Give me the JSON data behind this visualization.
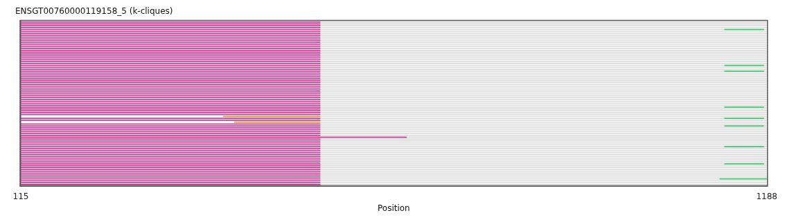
{
  "chart_data": {
    "type": "bar",
    "orientation": "horizontal",
    "title": "ENSGT00760000119158_5 (k-cliques)",
    "xlabel": "Position",
    "xlim": [
      115,
      1188
    ],
    "xticks": [
      115,
      1188
    ],
    "tick_labels": "x",
    "legend": false,
    "categories": [
      null,
      null,
      null,
      null,
      null,
      null,
      null,
      null,
      null,
      null,
      null,
      null,
      null,
      null,
      null,
      null,
      null,
      null,
      null,
      null,
      null,
      null,
      null,
      null,
      null,
      null,
      null,
      null,
      null,
      null,
      null,
      null,
      null,
      null,
      null,
      null,
      null,
      null,
      null,
      null,
      null,
      null,
      null,
      null,
      null,
      null,
      null,
      null,
      null,
      null,
      null,
      null,
      null,
      null,
      null,
      null,
      null,
      null,
      null,
      null,
      null,
      null,
      null,
      null,
      null,
      null,
      null,
      null,
      null,
      null,
      null,
      null,
      null,
      null,
      null,
      null,
      null,
      null,
      null,
      null,
      null,
      null,
      null,
      null,
      null,
      null,
      null
    ],
    "series": [
      {
        "color": "#dddddd",
        "base": [
          546,
          546,
          546,
          546,
          546,
          546,
          546,
          546,
          546,
          546,
          546,
          546,
          546,
          546,
          546,
          546,
          546,
          546,
          546,
          546,
          546,
          546,
          546,
          546,
          546,
          546,
          546,
          546,
          546,
          546,
          546,
          546,
          546,
          546,
          546,
          546,
          546,
          546,
          546,
          546,
          546,
          546,
          546,
          546,
          546,
          546,
          546,
          546,
          546,
          546,
          546,
          546,
          546,
          546,
          546,
          546,
          546,
          546,
          546,
          546,
          546,
          670,
          546,
          546,
          546,
          546,
          546,
          546,
          546,
          546,
          546,
          546,
          546,
          546,
          546,
          546,
          546,
          546,
          546,
          546,
          546,
          546,
          546,
          546,
          546,
          546,
          546
        ],
        "values": [
          642,
          642,
          642,
          642,
          642,
          642,
          642,
          642,
          642,
          642,
          642,
          642,
          642,
          642,
          642,
          642,
          642,
          642,
          642,
          642,
          642,
          642,
          642,
          642,
          642,
          642,
          642,
          642,
          642,
          642,
          642,
          642,
          642,
          642,
          642,
          642,
          642,
          642,
          642,
          642,
          642,
          642,
          642,
          642,
          642,
          642,
          642,
          642,
          642,
          642,
          642,
          642,
          642,
          642,
          642,
          642,
          642,
          642,
          642,
          642,
          642,
          518,
          642,
          642,
          642,
          642,
          642,
          642,
          642,
          642,
          642,
          642,
          642,
          642,
          642,
          642,
          642,
          642,
          642,
          642,
          642,
          642,
          642,
          642,
          642,
          642,
          642
        ]
      },
      {
        "color": "#cc3d97",
        "base": [
          115,
          115,
          115,
          115,
          115,
          115,
          115,
          115,
          115,
          115,
          115,
          115,
          115,
          115,
          115,
          115,
          115,
          115,
          115,
          115,
          115,
          115,
          115,
          115,
          115,
          115,
          115,
          115,
          115,
          115,
          115,
          115,
          115,
          115,
          115,
          115,
          115,
          115,
          115,
          115,
          115,
          115,
          115,
          115,
          115,
          115,
          115,
          115,
          115,
          115,
          null,
          115,
          115,
          null,
          115,
          115,
          115,
          115,
          115,
          115,
          115,
          115,
          115,
          115,
          115,
          115,
          115,
          115,
          115,
          115,
          115,
          115,
          115,
          115,
          115,
          115,
          115,
          115,
          115,
          115,
          115,
          115,
          115,
          115,
          115,
          115,
          115
        ],
        "values": [
          431,
          431,
          431,
          431,
          431,
          431,
          431,
          431,
          431,
          431,
          431,
          431,
          431,
          431,
          431,
          431,
          431,
          431,
          431,
          431,
          431,
          431,
          431,
          431,
          431,
          431,
          431,
          431,
          431,
          431,
          431,
          431,
          431,
          431,
          431,
          431,
          431,
          431,
          431,
          431,
          431,
          431,
          431,
          431,
          431,
          431,
          431,
          431,
          431,
          431,
          null,
          431,
          431,
          null,
          431,
          431,
          431,
          431,
          431,
          431,
          431,
          555,
          431,
          431,
          431,
          431,
          431,
          431,
          431,
          431,
          431,
          431,
          431,
          431,
          431,
          431,
          431,
          431,
          431,
          431,
          431,
          431,
          431,
          431,
          431,
          431,
          431
        ]
      },
      {
        "color": "#d4983c",
        "base": [
          null,
          null,
          null,
          null,
          null,
          null,
          null,
          null,
          null,
          null,
          null,
          null,
          null,
          null,
          null,
          null,
          null,
          null,
          null,
          null,
          null,
          null,
          null,
          null,
          null,
          null,
          null,
          null,
          null,
          null,
          null,
          null,
          null,
          null,
          null,
          null,
          null,
          null,
          null,
          null,
          null,
          null,
          null,
          null,
          null,
          null,
          null,
          null,
          null,
          null,
          406,
          null,
          null,
          422,
          null,
          null,
          null,
          null,
          null,
          null,
          null,
          null,
          null,
          null,
          null,
          null,
          null,
          null,
          null,
          null,
          null,
          null,
          null,
          null,
          null,
          null,
          null,
          null,
          null,
          null,
          null,
          null,
          null,
          null,
          null,
          null,
          null
        ],
        "values": [
          null,
          null,
          null,
          null,
          null,
          null,
          null,
          null,
          null,
          null,
          null,
          null,
          null,
          null,
          null,
          null,
          null,
          null,
          null,
          null,
          null,
          null,
          null,
          null,
          null,
          null,
          null,
          null,
          null,
          null,
          null,
          null,
          null,
          null,
          null,
          null,
          null,
          null,
          null,
          null,
          null,
          null,
          null,
          null,
          null,
          null,
          null,
          null,
          null,
          null,
          140,
          null,
          null,
          124,
          null,
          null,
          null,
          null,
          null,
          null,
          null,
          null,
          null,
          null,
          null,
          null,
          null,
          null,
          null,
          null,
          null,
          null,
          null,
          null,
          null,
          null,
          null,
          null,
          null,
          null,
          null,
          null,
          null,
          null,
          null,
          null,
          null
        ]
      },
      {
        "color": "#33cc66",
        "base": [
          null,
          null,
          null,
          null,
          1127,
          null,
          null,
          null,
          null,
          null,
          null,
          null,
          null,
          null,
          null,
          null,
          null,
          null,
          null,
          null,
          null,
          null,
          null,
          1127,
          null,
          null,
          1127,
          null,
          null,
          null,
          null,
          null,
          null,
          null,
          null,
          null,
          null,
          null,
          null,
          null,
          null,
          null,
          null,
          null,
          null,
          1127,
          null,
          null,
          null,
          null,
          null,
          1127,
          null,
          null,
          null,
          1127,
          null,
          null,
          null,
          null,
          null,
          null,
          null,
          null,
          null,
          null,
          1127,
          null,
          null,
          null,
          null,
          null,
          null,
          null,
          null,
          1127,
          null,
          null,
          null,
          null,
          null,
          null,
          null,
          1120,
          null,
          null,
          null
        ],
        "values": [
          null,
          null,
          null,
          null,
          57,
          null,
          null,
          null,
          null,
          null,
          null,
          null,
          null,
          null,
          null,
          null,
          null,
          null,
          null,
          null,
          null,
          null,
          null,
          57,
          null,
          null,
          57,
          null,
          null,
          null,
          null,
          null,
          null,
          null,
          null,
          null,
          null,
          null,
          null,
          null,
          null,
          null,
          null,
          null,
          null,
          57,
          null,
          null,
          null,
          null,
          null,
          57,
          null,
          null,
          null,
          57,
          null,
          null,
          null,
          null,
          null,
          null,
          null,
          null,
          null,
          null,
          57,
          null,
          null,
          null,
          null,
          null,
          null,
          null,
          null,
          57,
          null,
          null,
          null,
          null,
          null,
          null,
          null,
          68,
          null,
          null,
          null
        ]
      }
    ]
  }
}
